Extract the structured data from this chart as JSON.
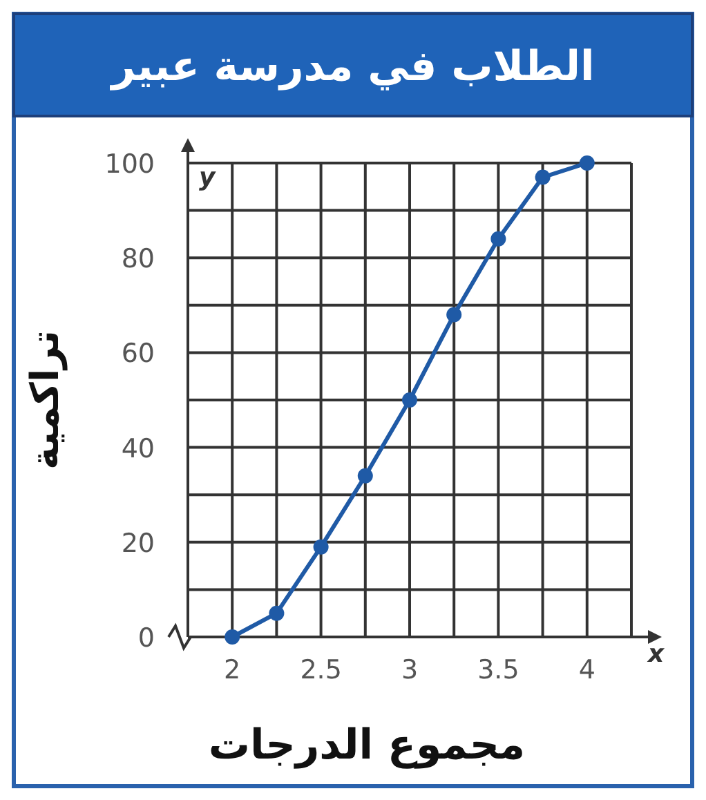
{
  "chart_data": {
    "type": "line",
    "title": "الطلاب في مدرسة عبير",
    "xlabel": "مجموع الدرجات",
    "ylabel": "تراكمية",
    "x": [
      2,
      2.25,
      2.5,
      2.75,
      3,
      3.25,
      3.5,
      3.75,
      4
    ],
    "series": [
      {
        "color": "#1f5aa6",
        "values": [
          0,
          5,
          19,
          34,
          50,
          68,
          84,
          97,
          100
        ]
      }
    ],
    "xlim": [
      1.75,
      4.25
    ],
    "ylim": [
      0,
      100
    ],
    "xticks": [
      {
        "value": 1.75,
        "label": null
      },
      2,
      {
        "value": 2.25,
        "label": null
      },
      2.5,
      {
        "value": 2.75,
        "label": null
      },
      3,
      {
        "value": 3.25,
        "label": null
      },
      3.5,
      {
        "value": 3.75,
        "label": null
      },
      4,
      {
        "value": 4.25,
        "label": null
      }
    ],
    "yticks": [
      0,
      {
        "value": 10,
        "label": null
      },
      20,
      {
        "value": 30,
        "label": null
      },
      40,
      {
        "value": 50,
        "label": null
      },
      60,
      {
        "value": 70,
        "label": null
      },
      80,
      {
        "value": 90,
        "label": null
      },
      100
    ],
    "annotations": [
      "x",
      "y"
    ],
    "grid": true,
    "marker": "circle",
    "line_style": "solid"
  }
}
